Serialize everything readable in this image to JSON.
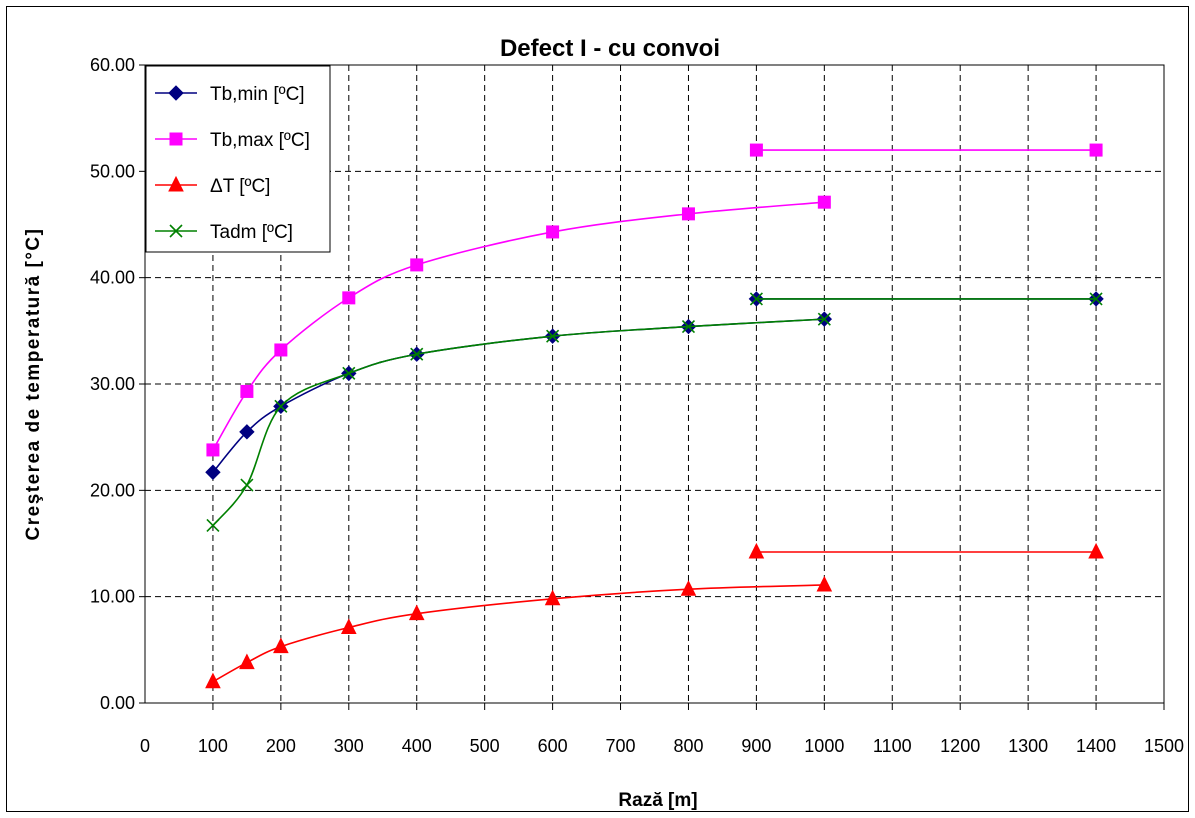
{
  "chart_data": {
    "type": "line",
    "title": "Defect I - cu convoi",
    "xlabel": "Rază [m]",
    "ylabel": "Creşterea de temperatură [°C]",
    "x_ticks": [
      "0",
      "100",
      "200",
      "300",
      "400",
      "500",
      "600",
      "700",
      "800",
      "900",
      "1000",
      "1100",
      "1200",
      "1300",
      "1400",
      "1500"
    ],
    "y_ticks": [
      "0.00",
      "10.00",
      "20.00",
      "30.00",
      "40.00",
      "50.00",
      "60.00"
    ],
    "xlim": [
      0,
      1500
    ],
    "ylim": [
      0,
      60
    ],
    "grid": true,
    "legend_position": "top-left",
    "x": [
      100,
      150,
      200,
      300,
      400,
      600,
      800,
      1000
    ],
    "x_display": [
      100,
      150,
      200,
      300,
      400,
      600,
      800,
      1000
    ],
    "x_ext": [
      1400,
      1400
    ],
    "x_ext_display": [
      900,
      1400
    ],
    "series": [
      {
        "name": "Tb,min [ºC]",
        "color": "#000080",
        "marker": "diamond",
        "values": [
          21.7,
          25.5,
          27.9,
          31.0,
          32.8,
          34.5,
          35.4,
          36.1
        ],
        "ext": [
          38.0,
          38.0
        ]
      },
      {
        "name": "Tb,max [ºC]",
        "color": "#ff00ff",
        "marker": "square",
        "values": [
          23.8,
          29.3,
          33.2,
          38.1,
          41.2,
          44.3,
          46.0,
          47.1
        ],
        "ext": [
          52.0,
          52.0
        ]
      },
      {
        "name": "ΔT [ºC]",
        "color": "#ff0000",
        "marker": "triangle",
        "values": [
          2.0,
          3.8,
          5.3,
          7.1,
          8.4,
          9.8,
          10.7,
          11.1
        ],
        "ext": [
          14.2,
          14.2
        ]
      },
      {
        "name": "Tadm [ºC]",
        "color": "#008000",
        "marker": "x",
        "values": [
          16.7,
          20.5,
          27.9,
          31.0,
          32.8,
          34.5,
          35.4,
          36.1
        ],
        "ext": [
          38.0,
          38.0
        ]
      }
    ]
  }
}
